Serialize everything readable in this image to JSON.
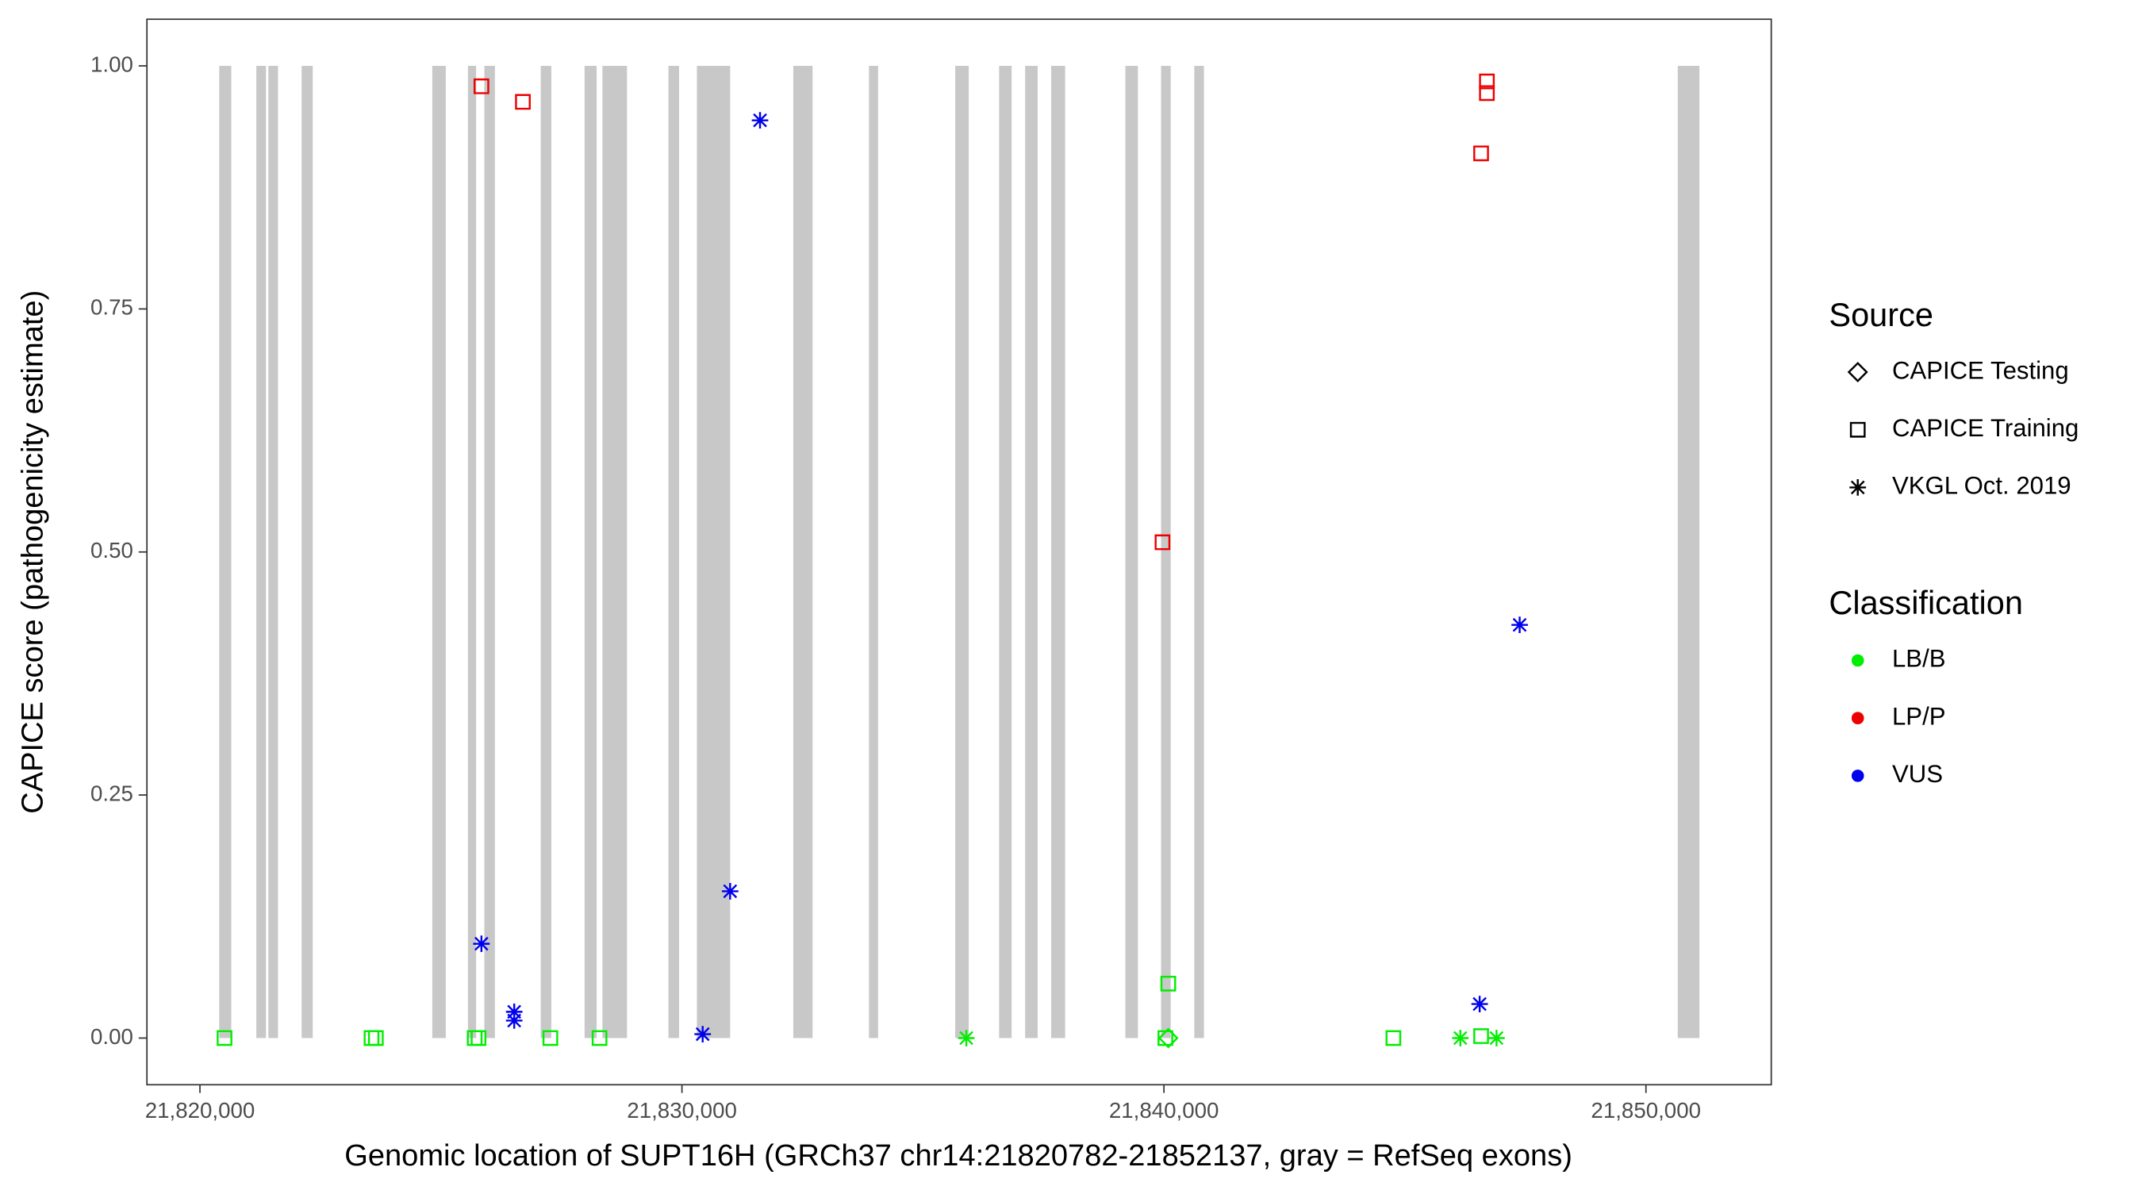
{
  "chart_data": {
    "type": "scatter",
    "x_label": "Genomic location of SUPT16H (GRCh37 chr14:21820782-21852137, gray = RefSeq exons)",
    "y_label": "CAPICE score (pathogenicity estimate)",
    "xlim": [
      21818900,
      21852600
    ],
    "ylim": [
      -0.048,
      1.048
    ],
    "xticks": [
      {
        "value": 21820000,
        "label": "21,820,000"
      },
      {
        "value": 21830000,
        "label": "21,830,000"
      },
      {
        "value": 21840000,
        "label": "21,840,000"
      },
      {
        "value": 21850000,
        "label": "21,850,000"
      }
    ],
    "yticks": [
      {
        "value": 0,
        "label": "0.00"
      },
      {
        "value": 0.25,
        "label": "0.25"
      },
      {
        "value": 0.5,
        "label": "0.50"
      },
      {
        "value": 0.75,
        "label": "0.75"
      },
      {
        "value": 1,
        "label": "1.00"
      }
    ],
    "exon_color": "#c8c8c8",
    "exon_ylim": [
      0,
      1
    ],
    "exons": [
      [
        21820400,
        21820650
      ],
      [
        21821170,
        21821370
      ],
      [
        21821420,
        21821620
      ],
      [
        21822110,
        21822340
      ],
      [
        21824820,
        21825100
      ],
      [
        21825560,
        21825730
      ],
      [
        21825900,
        21826120
      ],
      [
        21827070,
        21827290
      ],
      [
        21827980,
        21828230
      ],
      [
        21828350,
        21828860
      ],
      [
        21829720,
        21829940
      ],
      [
        21830310,
        21831000
      ],
      [
        21832310,
        21832710
      ],
      [
        21833880,
        21834070
      ],
      [
        21835670,
        21835950
      ],
      [
        21836580,
        21836840
      ],
      [
        21837120,
        21837380
      ],
      [
        21837660,
        21837950
      ],
      [
        21839200,
        21839460
      ],
      [
        21839940,
        21840140
      ],
      [
        21840630,
        21840830
      ],
      [
        21850660,
        21851110
      ]
    ],
    "legends": [
      {
        "title": "Source",
        "items": [
          {
            "label": "CAPICE Testing",
            "shape": "diamond"
          },
          {
            "label": "CAPICE Training",
            "shape": "square"
          },
          {
            "label": "VKGL Oct. 2019",
            "shape": "star"
          }
        ]
      },
      {
        "title": "Classification",
        "items": [
          {
            "label": "LB/B",
            "color": "#00ee00"
          },
          {
            "label": "LP/P",
            "color": "#ee0000"
          },
          {
            "label": "VUS",
            "color": "#0000ee"
          }
        ]
      }
    ],
    "series": [
      {
        "shape": "square",
        "color": "#00ee00",
        "x": [
          21820510,
          21823560,
          21823650,
          21825700,
          21825780,
          21827270,
          21828290,
          21840090,
          21840030,
          21844760,
          21846580
        ],
        "values": [
          0,
          0,
          0,
          0,
          0,
          0,
          0,
          0.056,
          0,
          0,
          0.002
        ]
      },
      {
        "shape": "diamond",
        "color": "#00ee00",
        "x": [
          21840090
        ],
        "values": [
          0
        ]
      },
      {
        "shape": "star",
        "color": "#00ee00",
        "x": [
          21835900,
          21846150,
          21846900
        ],
        "values": [
          0,
          0,
          0
        ]
      },
      {
        "shape": "square",
        "color": "#ee0000",
        "x": [
          21825840,
          21826700,
          21839970,
          21846700,
          21846700,
          21846580
        ],
        "values": [
          0.979,
          0.963,
          0.51,
          0.984,
          0.972,
          0.91
        ]
      },
      {
        "shape": "star",
        "color": "#0000ee",
        "x": [
          21831620,
          21825840,
          21826520,
          21826520,
          21830430,
          21831000,
          21846550,
          21847380
        ],
        "values": [
          0.944,
          0.097,
          0.027,
          0.018,
          0.004,
          0.151,
          0.035,
          0.425
        ]
      }
    ]
  }
}
